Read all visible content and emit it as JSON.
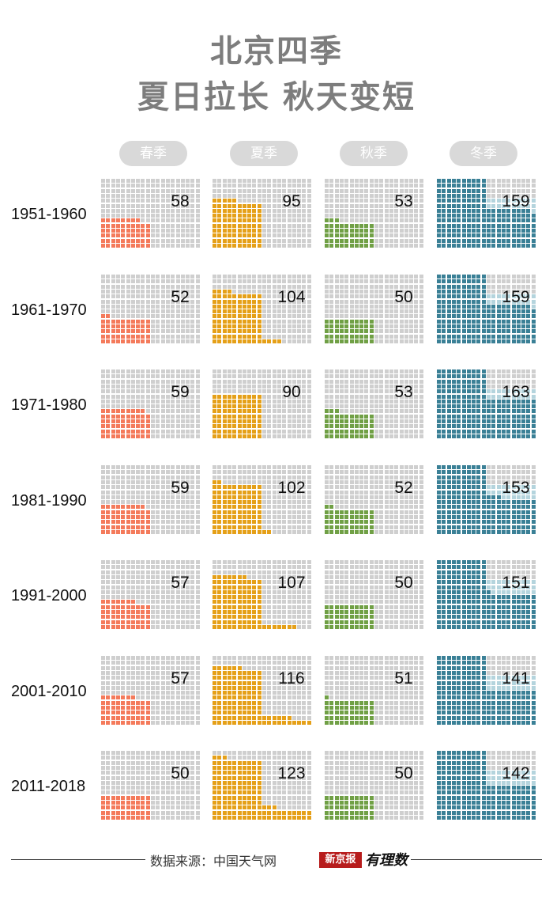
{
  "title": {
    "line1": "北京四季",
    "line2": "夏日拉长 秋天变短"
  },
  "footer": {
    "source": "数据来源：中国天气网",
    "brand_box": "新京报",
    "brand_text": "有理数"
  },
  "colors": {
    "empty": "#cfcfcf",
    "spring": "#f47a5b",
    "summer": "#e5a018",
    "autumn": "#70a045",
    "winter": "#3a8096",
    "winter_overflow": "#b4d4dd"
  },
  "chart_data": {
    "type": "waffle",
    "title": "北京四季 夏日拉长 秋天变短",
    "unit": "days",
    "seasons": [
      "春季",
      "夏季",
      "秋季",
      "冬季"
    ],
    "periods": [
      "1951-1960",
      "1961-1970",
      "1971-1980",
      "1981-1990",
      "1991-2000",
      "2001-2010",
      "2011-2018"
    ],
    "series": [
      {
        "name": "春季",
        "values": [
          58,
          52,
          59,
          59,
          57,
          57,
          50
        ]
      },
      {
        "name": "夏季",
        "values": [
          95,
          104,
          90,
          102,
          107,
          116,
          123
        ]
      },
      {
        "name": "秋季",
        "values": [
          53,
          50,
          53,
          52,
          50,
          51,
          50
        ]
      },
      {
        "name": "冬季",
        "values": [
          159,
          159,
          163,
          153,
          151,
          141,
          142
        ]
      }
    ]
  }
}
